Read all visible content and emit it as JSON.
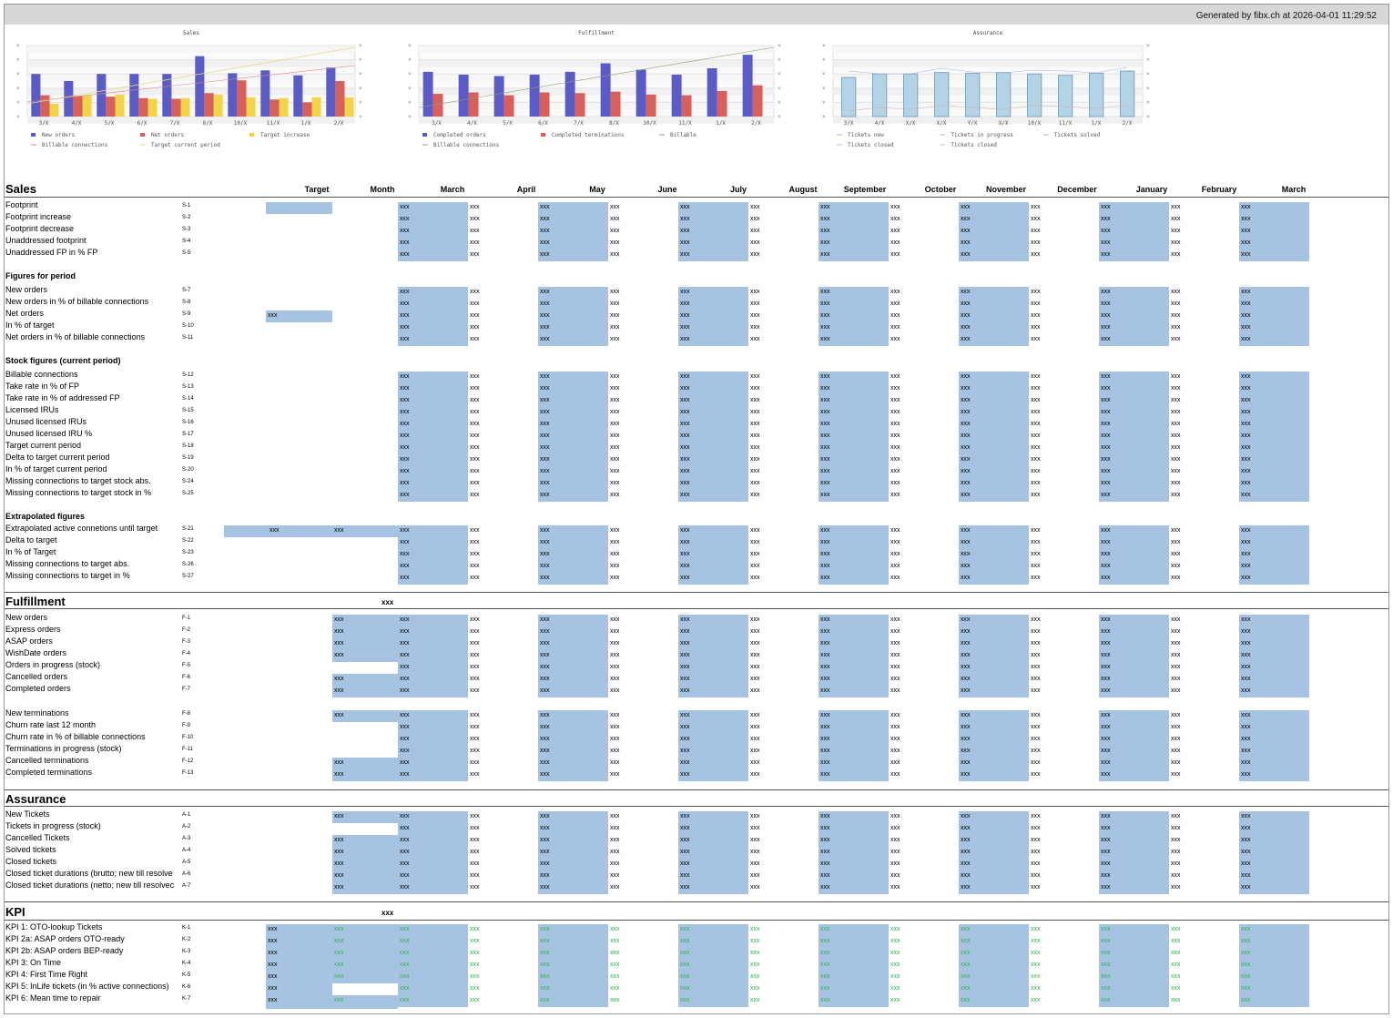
{
  "generated": "Generated by fibx.ch at 2026-04-01 11:29:52",
  "placeholder": "xxx",
  "month_columns": [
    "Target",
    "Month",
    "March",
    "April",
    "May",
    "June",
    "July",
    "August",
    "September",
    "October",
    "November",
    "December",
    "January",
    "February",
    "March"
  ],
  "charts": [
    {
      "title": "Sales",
      "type": "bar",
      "categories": [
        "3/X",
        "4/X",
        "5/X",
        "6/X",
        "7/X",
        "8/X",
        "10/X",
        "11/X",
        "1/X",
        "2/X"
      ],
      "series": [
        {
          "name": "New orders",
          "color": "#5b5bc8",
          "values": [
            6,
            5,
            6,
            6,
            6,
            8.5,
            6.1,
            6.5,
            5.8,
            6.9
          ]
        },
        {
          "name": "Net orders",
          "color": "#d9605a",
          "values": [
            3,
            2.9,
            2.8,
            2.6,
            2.5,
            3.3,
            5.1,
            2.4,
            2,
            5
          ]
        },
        {
          "name": "Target increase",
          "color": "#f2d34a",
          "values": [
            1.8,
            3,
            3.1,
            2.5,
            2.6,
            3.1,
            2.7,
            2.6,
            2.7,
            2.7
          ]
        }
      ],
      "lines": [
        {
          "name": "Billable connections",
          "color": "#d98a8a"
        },
        {
          "name": "Target current period",
          "color": "#e4dc8a"
        }
      ]
    },
    {
      "title": "Fulfillment",
      "type": "bar",
      "categories": [
        "3/X",
        "4/X",
        "5/X",
        "6/X",
        "7/X",
        "8/X",
        "10/X",
        "11/X",
        "1/X",
        "2/X"
      ],
      "series": [
        {
          "name": "Completed orders",
          "color": "#5b5bc8",
          "values": [
            6.3,
            5.9,
            5.7,
            5.9,
            6.3,
            7.5,
            6.6,
            5.9,
            6.8,
            8.7
          ]
        },
        {
          "name": "Completed terminations",
          "color": "#d9605a",
          "values": [
            3.2,
            3.4,
            3,
            3.4,
            3.3,
            3.5,
            3.1,
            3,
            3.6,
            4.4
          ]
        }
      ],
      "lines": [
        {
          "name": "Billable",
          "color": "#999999"
        },
        {
          "name": "Billable connections",
          "color": "#999999"
        }
      ]
    },
    {
      "title": "Assurance",
      "type": "bar",
      "categories": [
        "3/X",
        "4/X",
        "X/X",
        "X/X",
        "Y/X",
        "X/X",
        "10/X",
        "11/X",
        "1/X",
        "2/X"
      ],
      "series": [
        {
          "name": "Tickets new",
          "color": "#b4d4e6",
          "values": [
            5.5,
            6,
            6,
            6.2,
            6.1,
            6.2,
            6,
            5.8,
            6.1,
            6.4
          ]
        }
      ],
      "lines": [
        {
          "name": "Tickets new",
          "color": "#a8b8d8"
        },
        {
          "name": "Tickets in progress",
          "color": "#d8a8a8"
        },
        {
          "name": "Tickets solved",
          "color": "#9ac0a0"
        },
        {
          "name": "Tickets closed",
          "color": "#c8b8e0"
        },
        {
          "name": "Tickets closed",
          "color": "#c0c0c0"
        }
      ],
      "legend": [
        "Tickets new",
        "Tickets in progress",
        "Tickets solved",
        "Tickets closed",
        "Tickets closed"
      ]
    }
  ],
  "sections": {
    "sales": "Sales",
    "fulfillment": "Fulfillment",
    "assurance": "Assurance",
    "kpi": "KPI"
  },
  "rows": [
    {
      "label": "Footprint",
      "code": "S-1",
      "target": true
    },
    {
      "label": "Footprint increase",
      "code": "S-2"
    },
    {
      "label": "Footprint decrease",
      "code": "S-3"
    },
    {
      "label": "Unaddressed footprint",
      "code": "S-4"
    },
    {
      "label": "Unaddressed FP in % FP",
      "code": "S-5"
    },
    {
      "label": "Figures for period",
      "bold": true
    },
    {
      "label": "New orders",
      "code": "S-7"
    },
    {
      "label": "New orders in % of billable connections",
      "code": "S-8"
    },
    {
      "label": "Net orders",
      "code": "S-9",
      "targetVal": true
    },
    {
      "label": "In % of target",
      "code": "S-10"
    },
    {
      "label": "Net orders in % of billable connections",
      "code": "S-11"
    },
    {
      "label": "Stock figures (current period)",
      "bold": true
    },
    {
      "label": "Billable connections",
      "code": "S-12"
    },
    {
      "label": "Take rate in % of FP",
      "code": "S-13"
    },
    {
      "label": "Take rate in % of addressed FP",
      "code": "S-14"
    },
    {
      "label": "Licensed IRUs",
      "code": "S-15"
    },
    {
      "label": "Unused licensed IRUs",
      "code": "S-16"
    },
    {
      "label": "Unused licensed IRU %",
      "code": "S-17"
    },
    {
      "label": "Target current period",
      "code": "S-18"
    },
    {
      "label": "Delta to target current period",
      "code": "S-19"
    },
    {
      "label": "In % of target current period",
      "code": "S-20"
    },
    {
      "label": "Missing connections to target stock abs.",
      "code": "S-24"
    },
    {
      "label": "Missing connections to target stock in %",
      "code": "S-25"
    },
    {
      "label": "Extrapolated figures",
      "bold": true
    },
    {
      "label": "Extrapolated active connetions until target",
      "code": "S-21",
      "extrap": true
    },
    {
      "label": "Delta to target",
      "code": "S-22"
    },
    {
      "label": "In % of Target",
      "code": "S-23"
    },
    {
      "label": "Missing connections to target abs.",
      "code": "S-26"
    },
    {
      "label": "Missing connections to target in %",
      "code": "S-27"
    }
  ],
  "fulfillment_rows": [
    {
      "label": "New orders",
      "code": "F-1",
      "month": true
    },
    {
      "label": " Express orders",
      "code": "F-2",
      "month": true
    },
    {
      "label": " ASAP orders",
      "code": "F-3",
      "month": true
    },
    {
      "label": " WishDate orders",
      "code": "F-4",
      "month": true
    },
    {
      "label": "Orders in progress (stock)",
      "code": "F-5"
    },
    {
      "label": "Cancelled orders",
      "code": "F-6",
      "month": true
    },
    {
      "label": "Completed orders",
      "code": "F-7",
      "month": true
    },
    {
      "label": "New terminations",
      "code": "F-8",
      "month": true
    },
    {
      "label": "Churn rate last 12 month",
      "code": "F-9"
    },
    {
      "label": "Churn rate in % of billable connections",
      "code": "F-10"
    },
    {
      "label": "Terminations in progress (stock)",
      "code": "F-11"
    },
    {
      "label": "Cancelled terminations",
      "code": "F-12",
      "month": true
    },
    {
      "label": "Completed terminations",
      "code": "F-13",
      "month": true
    }
  ],
  "assurance_rows": [
    {
      "label": "New Tickets",
      "code": "A-1",
      "month": true
    },
    {
      "label": "Tickets in progress (stock)",
      "code": "A-2"
    },
    {
      "label": "Cancelled Tickets",
      "code": "A-3",
      "month": true
    },
    {
      "label": "Solved tickets",
      "code": "A-4",
      "month": true
    },
    {
      "label": "Closed tickets",
      "code": "A-5",
      "month": true
    },
    {
      "label": "Closed ticket durations (brutto; new till resolve",
      "code": "A-6",
      "month": true
    },
    {
      "label": "Closed ticket durations (netto; new till resolvec",
      "code": "A-7",
      "month": true
    }
  ],
  "kpi_rows": [
    {
      "label": "KPI 1: OTO-lookup Tickets",
      "code": "K-1"
    },
    {
      "label": "KPI 2a: ASAP orders OTO-ready",
      "code": "K-2"
    },
    {
      "label": "KPI 2b: ASAP orders BEP-ready",
      "code": "K-3"
    },
    {
      "label": "KPI 3: On Time",
      "code": "K-4"
    },
    {
      "label": "KPI 4: First Time Right",
      "code": "K-5"
    },
    {
      "label": "KPI 5: InLife tickets (in % active connections)",
      "code": "K-6"
    },
    {
      "label": "KPI 6: Mean time to repair",
      "code": "K-7"
    }
  ]
}
